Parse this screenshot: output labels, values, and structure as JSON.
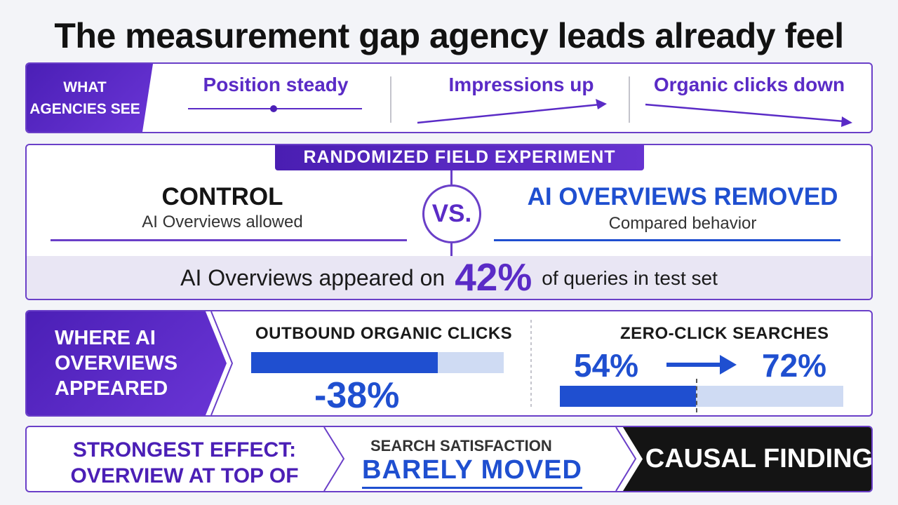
{
  "title": "The measurement gap agency leads already feel",
  "panel1": {
    "label": "WHAT AGENCIES SEE",
    "items": [
      "Position steady",
      "Impressions up",
      "Organic clicks down"
    ]
  },
  "panel2": {
    "badge": "RANDOMIZED FIELD EXPERIMENT",
    "left_head": "CONTROL",
    "left_sub": "AI Overviews allowed",
    "vs": "VS.",
    "right_head": "AI OVERVIEWS REMOVED",
    "right_sub": "Compared behavior",
    "stat_prefix": "AI Overviews appeared on",
    "stat_value": "42%",
    "stat_suffix": "of queries in test set"
  },
  "panel3": {
    "label": "WHERE AI OVERVIEWS APPEARED",
    "clicks_title": "OUTBOUND ORGANIC CLICKS",
    "clicks_value": "-38%",
    "clicks_bar_fraction": 0.74,
    "zero_title": "ZERO-CLICK SEARCHES",
    "zero_from": "54%",
    "zero_to": "72%",
    "zero_bar_fraction": 0.48
  },
  "panel4": {
    "left": "STRONGEST EFFECT: OVERVIEW AT TOP OF PAGE",
    "mid_title": "SEARCH SATISFACTION",
    "mid_big": "BARELY MOVED",
    "right": "CAUSAL FINDING"
  },
  "colors": {
    "purple": "#5a2bc6",
    "blue": "#1f4fd0",
    "black": "#141414"
  }
}
